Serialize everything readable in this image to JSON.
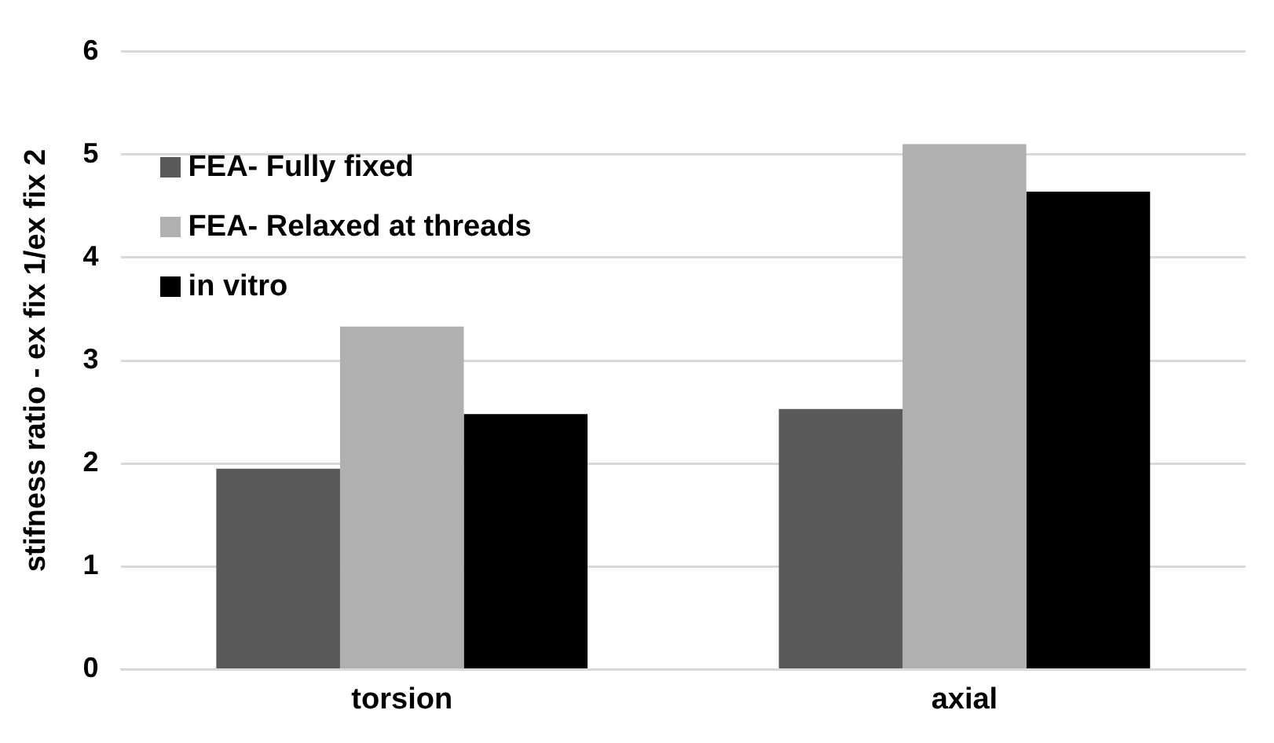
{
  "chart_data": {
    "type": "bar",
    "ylabel": "stifness ratio - ex fix 1/ex fix 2",
    "categories": [
      "torsion",
      "axial"
    ],
    "series": [
      {
        "name": "FEA- Fully fixed",
        "color": "#595959",
        "values": [
          1.95,
          2.53
        ]
      },
      {
        "name": "FEA- Relaxed at threads",
        "color": "#b0b0b0",
        "values": [
          3.33,
          5.1
        ]
      },
      {
        "name": "in vitro",
        "color": "#000000",
        "values": [
          2.48,
          4.64
        ]
      }
    ],
    "ylim": [
      0,
      6
    ],
    "yticks": [
      0,
      1,
      2,
      3,
      4,
      5,
      6
    ],
    "grid": "y",
    "legend": "top left"
  }
}
